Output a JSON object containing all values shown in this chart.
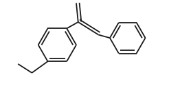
{
  "bg_color": "#ffffff",
  "line_color": "#1a1a1a",
  "line_width": 1.3,
  "dbo": 0.045,
  "figsize": [
    2.46,
    1.25
  ],
  "dpi": 100,
  "xlim": [
    -1.05,
    1.15
  ],
  "ylim": [
    -0.72,
    0.62
  ]
}
